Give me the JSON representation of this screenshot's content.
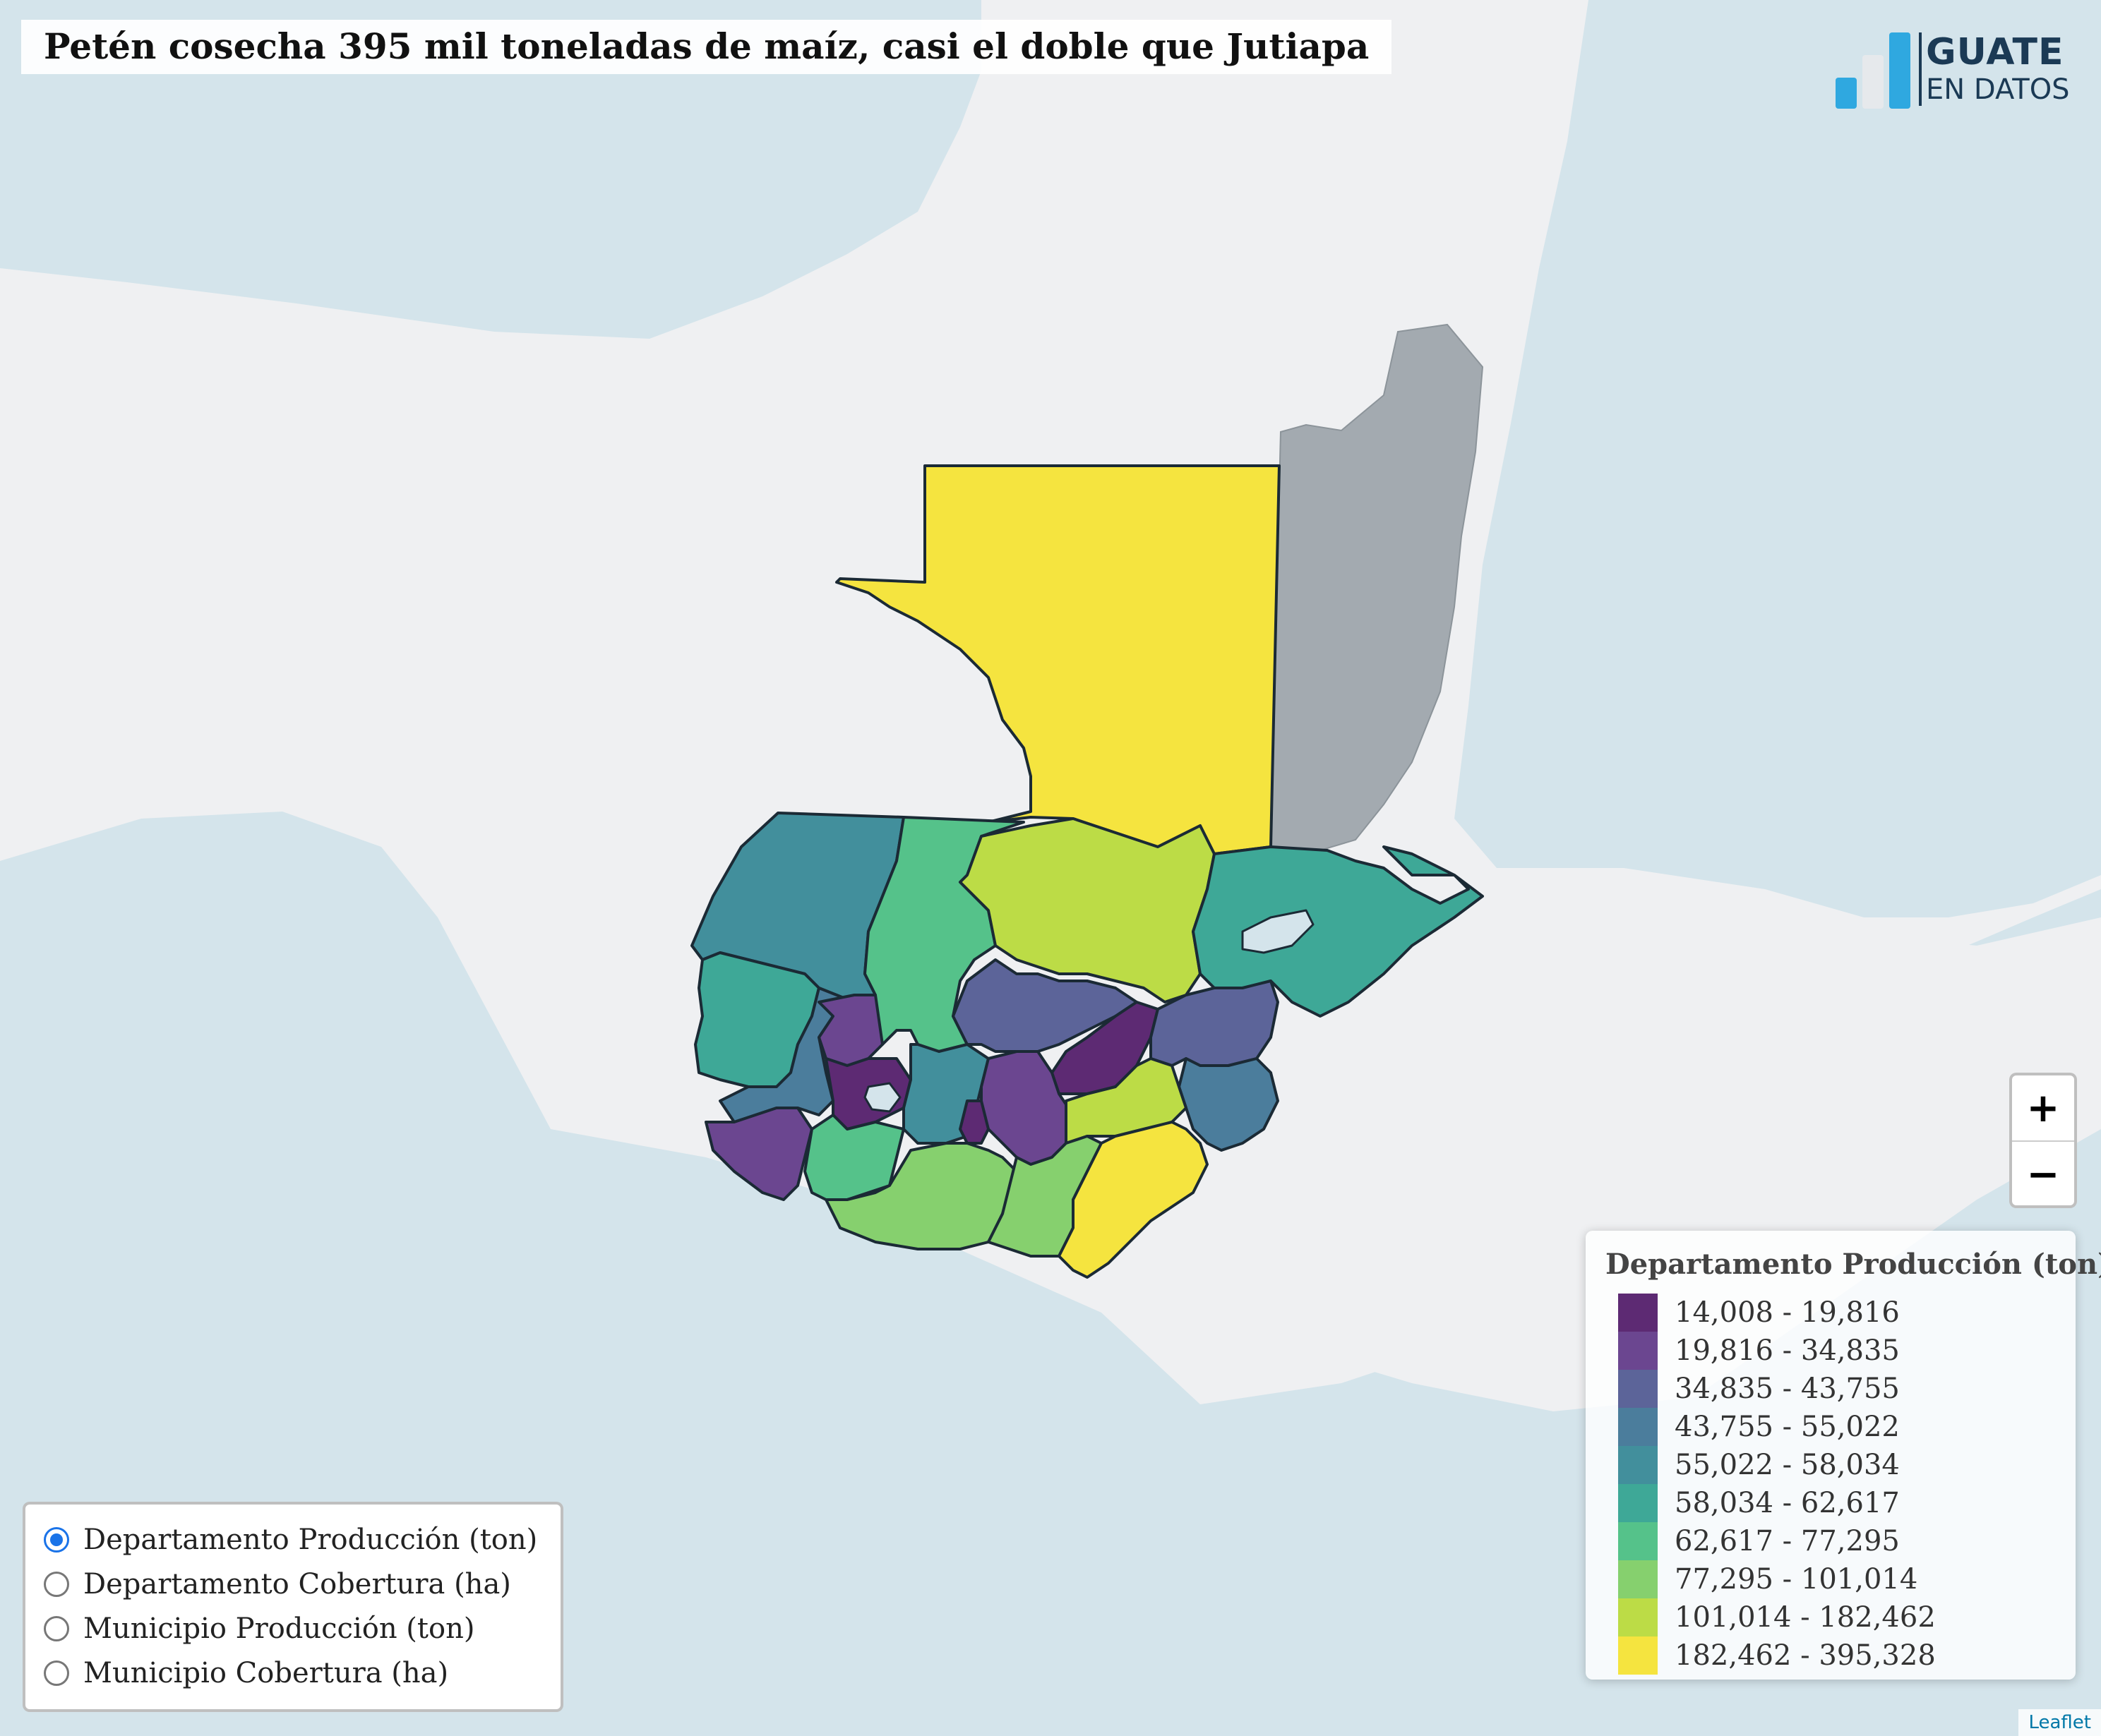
{
  "title": "Petén cosecha 395 mil toneladas de maíz, casi el doble que Jutiapa",
  "logo": {
    "line1": "GUATE",
    "line2": "EN DATOS",
    "colors": [
      "#2fa8e0",
      "#e6e9ec",
      "#2fa8e0"
    ]
  },
  "colors": {
    "water": "#d4e4eb",
    "land": "#eff0f2",
    "belize": "#a3aab0",
    "border": "#1b2a35"
  },
  "zoom": {
    "in_label": "+",
    "out_label": "−"
  },
  "legend": {
    "title": "Departamento Producción (ton)",
    "bins": [
      {
        "label": "14,008 - 19,816",
        "color": "#5d2a73"
      },
      {
        "label": "19,816 - 34,835",
        "color": "#6b4690"
      },
      {
        "label": "34,835 - 43,755",
        "color": "#5c6499"
      },
      {
        "label": "43,755 - 55,022",
        "color": "#4b7d9c"
      },
      {
        "label": "55,022 - 58,034",
        "color": "#428f9c"
      },
      {
        "label": "58,034 - 62,617",
        "color": "#3ea897"
      },
      {
        "label": "62,617 - 77,295",
        "color": "#55c28a"
      },
      {
        "label": "77,295 - 101,014",
        "color": "#86d06e"
      },
      {
        "label": "101,014 - 182,462",
        "color": "#bcdc46"
      },
      {
        "label": "182,462 - 395,328",
        "color": "#f5e43f"
      }
    ]
  },
  "layers": [
    {
      "label": "Departamento Producción (ton)",
      "selected": true
    },
    {
      "label": "Departamento Cobertura (ha)",
      "selected": false
    },
    {
      "label": "Municipio Producción (ton)",
      "selected": false
    },
    {
      "label": "Municipio Cobertura (ha)",
      "selected": false
    }
  ],
  "attribution": "Leaflet"
}
